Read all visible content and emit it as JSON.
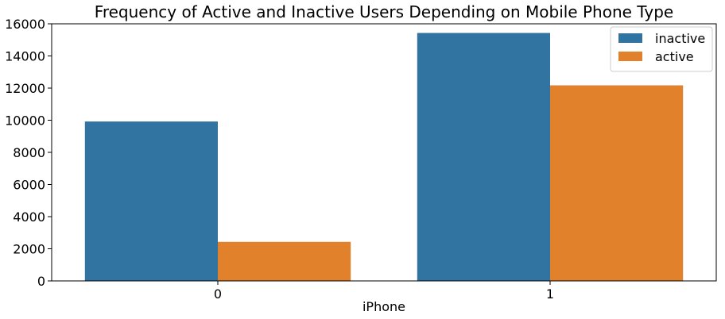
{
  "chart_data": {
    "type": "bar",
    "title": "Frequency of Active and Inactive Users Depending on Mobile Phone Type",
    "xlabel": "iPhone",
    "ylabel": "",
    "categories": [
      "0",
      "1"
    ],
    "series": [
      {
        "name": "inactive",
        "values": [
          9920,
          15430
        ],
        "color": "#3274a1"
      },
      {
        "name": "active",
        "values": [
          2430,
          12170
        ],
        "color": "#e1812c"
      }
    ],
    "ylim": [
      0,
      16000
    ],
    "yticks": [
      0,
      2000,
      4000,
      6000,
      8000,
      10000,
      12000,
      14000,
      16000
    ],
    "grid": false,
    "legend_position": "top-right"
  }
}
